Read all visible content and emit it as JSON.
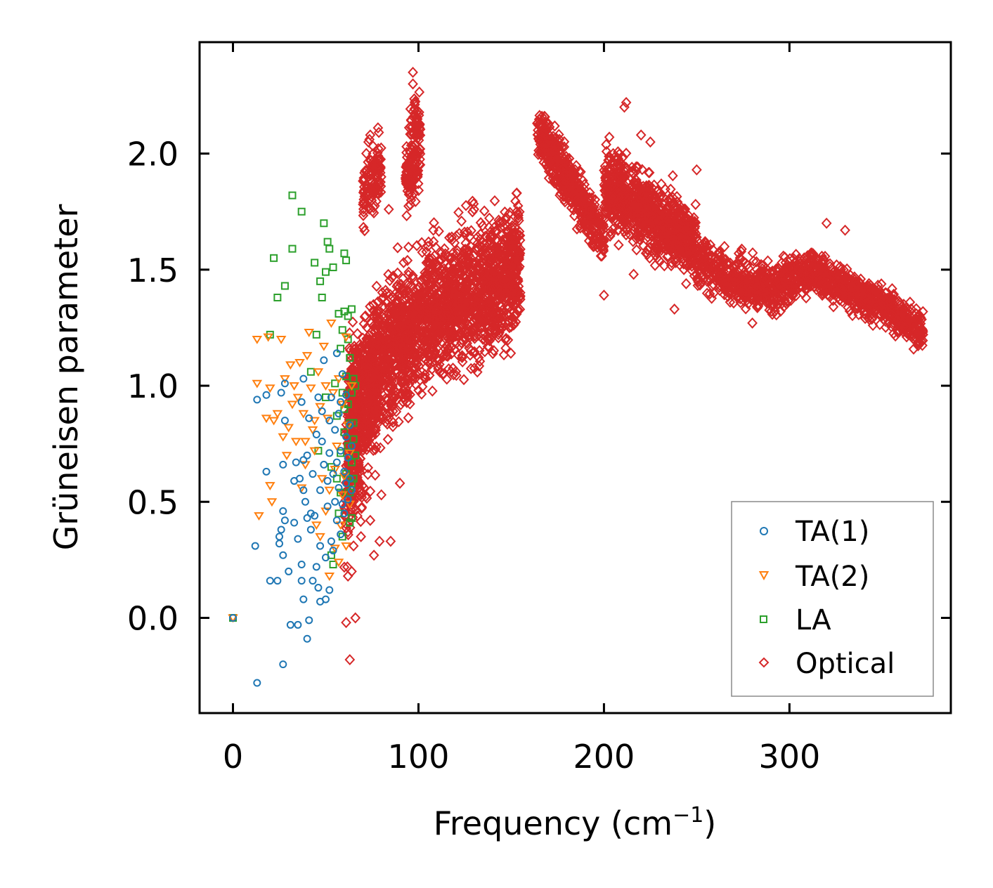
{
  "chart_data": {
    "type": "scatter",
    "title": "",
    "xlabel": "Frequency (cm",
    "xlabel_superscript": "−1",
    "xlabel_suffix": ")",
    "ylabel": "Grüneisen parameter",
    "xlim": [
      -18,
      387
    ],
    "ylim": [
      -0.41,
      2.48
    ],
    "xticks": [
      0,
      100,
      200,
      300
    ],
    "xtick_labels": [
      "0",
      "100",
      "200",
      "300"
    ],
    "yticks": [
      0.0,
      0.5,
      1.0,
      1.5,
      2.0
    ],
    "ytick_labels": [
      "0.0",
      "0.5",
      "1.0",
      "1.5",
      "2.0"
    ],
    "grid": false,
    "legend_position": "bottom-right",
    "series": [
      {
        "name": "TA(1)",
        "label": "TA(1)",
        "color": "#1f77b4",
        "marker": "circle",
        "points": [
          [
            0,
            0
          ],
          [
            13,
            0.94
          ],
          [
            13,
            -0.28
          ],
          [
            12,
            0.31
          ],
          [
            18,
            0.63
          ],
          [
            18,
            0.96
          ],
          [
            20,
            0.16
          ],
          [
            24,
            0.16
          ],
          [
            25,
            0.32
          ],
          [
            25,
            0.35
          ],
          [
            26,
            0.38
          ],
          [
            26,
            0.97
          ],
          [
            27,
            0.46
          ],
          [
            27,
            0.27
          ],
          [
            28,
            0.42
          ],
          [
            27,
            0.66
          ],
          [
            28,
            0.85
          ],
          [
            28,
            1.01
          ],
          [
            27,
            -0.2
          ],
          [
            31,
            -0.03
          ],
          [
            33,
            0.59
          ],
          [
            34,
            0.67
          ],
          [
            35,
            -0.03
          ],
          [
            35,
            0.34
          ],
          [
            36,
            0.6
          ],
          [
            37,
            0.16
          ],
          [
            38,
            0.08
          ],
          [
            37,
            0.23
          ],
          [
            38,
            0.68
          ],
          [
            37,
            0.93
          ],
          [
            38,
            1.03
          ],
          [
            39,
            0.5
          ],
          [
            40,
            0.43
          ],
          [
            40,
            0.7
          ],
          [
            41,
            0.86
          ],
          [
            40,
            -0.09
          ],
          [
            41,
            -0.01
          ],
          [
            42,
            0.45
          ],
          [
            43,
            0.16
          ],
          [
            43,
            0.62
          ],
          [
            44,
            0.44
          ],
          [
            45,
            0.79
          ],
          [
            46,
            0.95
          ],
          [
            46,
            0.13
          ],
          [
            47,
            0.31
          ],
          [
            47,
            0.55
          ],
          [
            47,
            0.07
          ],
          [
            48,
            0.76
          ],
          [
            48,
            0.89
          ],
          [
            49,
            1.11
          ],
          [
            50,
            0.08
          ],
          [
            50,
            0.26
          ],
          [
            51,
            0.48
          ],
          [
            51,
            0.59
          ],
          [
            52,
            0.12
          ],
          [
            52,
            0.71
          ],
          [
            53,
            0.95
          ],
          [
            53,
            0.33
          ],
          [
            54,
            0.62
          ],
          [
            54,
            0.29
          ],
          [
            55,
            0.5
          ],
          [
            55,
            0.81
          ],
          [
            56,
            0.42
          ],
          [
            56,
            0.67
          ],
          [
            57,
            0.56
          ],
          [
            57,
            0.88
          ],
          [
            58,
            0.36
          ],
          [
            58,
            0.72
          ],
          [
            59,
            0.49
          ],
          [
            59,
            1.05
          ],
          [
            60,
            0.63
          ],
          [
            60,
            0.45
          ],
          [
            61,
            0.78
          ],
          [
            61,
            0.58
          ],
          [
            62,
            0.51
          ],
          [
            62,
            0.69
          ],
          [
            63,
            0.6
          ],
          [
            63,
            0.83
          ],
          [
            64,
            0.55
          ],
          [
            64,
            0.74
          ],
          [
            45,
            0.22
          ],
          [
            38,
            0.55
          ],
          [
            52,
            0.85
          ],
          [
            58,
            0.93
          ],
          [
            42,
            0.38
          ],
          [
            49,
            0.66
          ],
          [
            56,
            1.14
          ],
          [
            33,
            0.41
          ],
          [
            61,
            0.96
          ],
          [
            30,
            0.2
          ]
        ]
      },
      {
        "name": "TA(2)",
        "label": "TA(2)",
        "color": "#ff7f0e",
        "marker": "triangle-down",
        "points": [
          [
            0,
            0
          ],
          [
            13,
            1.2
          ],
          [
            13,
            1.01
          ],
          [
            14,
            0.44
          ],
          [
            18,
            0.86
          ],
          [
            19,
            1.21
          ],
          [
            20,
            0.99
          ],
          [
            20,
            0.57
          ],
          [
            21,
            0.5
          ],
          [
            22,
            0.85
          ],
          [
            24,
            0.88
          ],
          [
            26,
            1.2
          ],
          [
            27,
            0.78
          ],
          [
            28,
            1.03
          ],
          [
            29,
            0.7
          ],
          [
            30,
            0.82
          ],
          [
            31,
            1.09
          ],
          [
            32,
            0.92
          ],
          [
            33,
            1.0
          ],
          [
            34,
            0.76
          ],
          [
            35,
            0.95
          ],
          [
            36,
            1.1
          ],
          [
            37,
            0.56
          ],
          [
            38,
            0.88
          ],
          [
            39,
            0.66
          ],
          [
            40,
            1.13
          ],
          [
            41,
            1.23
          ],
          [
            42,
            0.99
          ],
          [
            43,
            0.81
          ],
          [
            44,
            0.72
          ],
          [
            45,
            0.4
          ],
          [
            46,
            1.06
          ],
          [
            47,
            0.91
          ],
          [
            48,
            0.6
          ],
          [
            49,
            1.17
          ],
          [
            50,
            0.46
          ],
          [
            51,
            0.86
          ],
          [
            52,
            0.55
          ],
          [
            53,
            1.27
          ],
          [
            54,
            0.97
          ],
          [
            55,
            0.3
          ],
          [
            56,
            0.74
          ],
          [
            57,
            1.03
          ],
          [
            58,
            0.4
          ],
          [
            59,
            0.92
          ],
          [
            60,
            0.61
          ],
          [
            61,
            1.21
          ],
          [
            62,
            0.83
          ],
          [
            63,
            0.49
          ],
          [
            64,
            1.0
          ],
          [
            57,
            0.24
          ],
          [
            52,
            0.18
          ],
          [
            47,
            0.35
          ],
          [
            61,
            0.31
          ],
          [
            55,
            0.64
          ],
          [
            50,
            1.0
          ],
          [
            44,
            0.85
          ],
          [
            39,
            0.76
          ],
          [
            63,
            0.71
          ],
          [
            59,
            0.53
          ]
        ]
      },
      {
        "name": "LA",
        "label": "LA",
        "color": "#2ca02c",
        "marker": "square",
        "points": [
          [
            0,
            0
          ],
          [
            20,
            1.22
          ],
          [
            22,
            1.55
          ],
          [
            24,
            1.38
          ],
          [
            28,
            1.43
          ],
          [
            32,
            1.82
          ],
          [
            32,
            1.59
          ],
          [
            37,
            1.75
          ],
          [
            42,
            1.06
          ],
          [
            44,
            1.53
          ],
          [
            45,
            1.22
          ],
          [
            47,
            1.45
          ],
          [
            48,
            1.38
          ],
          [
            49,
            1.7
          ],
          [
            50,
            1.49
          ],
          [
            51,
            1.62
          ],
          [
            52,
            1.59
          ],
          [
            53,
            0.65
          ],
          [
            54,
            1.51
          ],
          [
            54,
            0.23
          ],
          [
            55,
            1.01
          ],
          [
            56,
            0.87
          ],
          [
            57,
            1.31
          ],
          [
            57,
            0.45
          ],
          [
            58,
            0.71
          ],
          [
            58,
            1.16
          ],
          [
            59,
            0.97
          ],
          [
            59,
            0.35
          ],
          [
            60,
            0.8
          ],
          [
            60,
            1.32
          ],
          [
            60,
            1.57
          ],
          [
            61,
            0.62
          ],
          [
            61,
            1.04
          ],
          [
            61,
            1.54
          ],
          [
            62,
            0.92
          ],
          [
            62,
            0.74
          ],
          [
            62,
            1.3
          ],
          [
            63,
            0.54
          ],
          [
            63,
            0.84
          ],
          [
            63,
            1.12
          ],
          [
            64,
            0.67
          ],
          [
            64,
            0.97
          ],
          [
            64,
            1.33
          ],
          [
            65,
            0.77
          ],
          [
            65,
            0.6
          ],
          [
            65,
            1.03
          ],
          [
            65,
            0.84
          ],
          [
            66,
            0.7
          ],
          [
            66,
            1.0
          ],
          [
            64,
            0.43
          ],
          [
            58,
            0.54
          ],
          [
            56,
            0.6
          ],
          [
            53,
            0.27
          ],
          [
            60,
            0.9
          ],
          [
            62,
            1.2
          ],
          [
            50,
            0.95
          ],
          [
            46,
            0.72
          ],
          [
            63,
            0.41
          ],
          [
            59,
            1.24
          ],
          [
            64,
            0.58
          ]
        ]
      },
      {
        "name": "Optical",
        "label": "Optical",
        "color": "#d62728",
        "marker": "diamond",
        "clusters": [
          {
            "fmin": 62,
            "fmax": 155,
            "center": [
              [
                62,
                0.9
              ],
              [
                75,
                1.05
              ],
              [
                90,
                1.2
              ],
              [
                110,
                1.32
              ],
              [
                130,
                1.4
              ],
              [
                155,
                1.52
              ]
            ],
            "spread": 0.3,
            "n": 2200
          },
          {
            "fmin": 60,
            "fmax": 78,
            "center": [
              [
                60,
                0.55
              ],
              [
                70,
                0.8
              ],
              [
                78,
                1.0
              ]
            ],
            "spread": 0.35,
            "n": 300
          },
          {
            "fmin": 70,
            "fmax": 80,
            "center": [
              [
                70,
                1.8
              ],
              [
                80,
                1.95
              ]
            ],
            "spread": 0.15,
            "n": 120
          },
          {
            "fmin": 93,
            "fmax": 101,
            "center": [
              [
                93,
                1.9
              ],
              [
                101,
                2.1
              ]
            ],
            "spread": 0.22,
            "n": 150
          },
          {
            "fmin": 164,
            "fmax": 200,
            "center": [
              [
                164,
                2.1
              ],
              [
                180,
                1.9
              ],
              [
                200,
                1.62
              ]
            ],
            "spread": 0.12,
            "n": 500
          },
          {
            "fmin": 200,
            "fmax": 250,
            "center": [
              [
                200,
                1.85
              ],
              [
                215,
                1.8
              ],
              [
                230,
                1.7
              ],
              [
                250,
                1.6
              ]
            ],
            "spread": 0.17,
            "n": 900
          },
          {
            "fmin": 250,
            "fmax": 310,
            "center": [
              [
                250,
                1.55
              ],
              [
                270,
                1.45
              ],
              [
                290,
                1.42
              ],
              [
                310,
                1.48
              ]
            ],
            "spread": 0.11,
            "n": 600
          },
          {
            "fmin": 310,
            "fmax": 372,
            "center": [
              [
                310,
                1.5
              ],
              [
                330,
                1.42
              ],
              [
                350,
                1.35
              ],
              [
                372,
                1.23
              ]
            ],
            "spread": 0.09,
            "n": 600
          }
        ],
        "sample_points": [
          [
            97,
            2.35
          ],
          [
            97,
            2.3
          ],
          [
            98,
            2.22
          ],
          [
            97,
            2.18
          ],
          [
            212,
            2.22
          ],
          [
            211,
            2.2
          ],
          [
            74,
            2.08
          ],
          [
            73,
            2.05
          ],
          [
            164,
            2.13
          ],
          [
            220,
            2.08
          ],
          [
            225,
            2.05
          ],
          [
            250,
            1.93
          ],
          [
            84,
            1.76
          ],
          [
            130,
            1.76
          ],
          [
            90,
            0.58
          ],
          [
            80,
            0.53
          ],
          [
            74,
            0.42
          ],
          [
            65,
            0.31
          ],
          [
            62,
            0.18
          ],
          [
            64,
            0.2
          ],
          [
            61,
            -0.02
          ],
          [
            66,
            0.0
          ],
          [
            63,
            -0.18
          ],
          [
            79,
            0.33
          ],
          [
            85,
            0.33
          ],
          [
            76,
            0.27
          ],
          [
            69,
            0.35
          ],
          [
            238,
            1.33
          ],
          [
            200,
            1.39
          ],
          [
            216,
            1.48
          ],
          [
            280,
            1.27
          ],
          [
            305,
            1.5
          ],
          [
            320,
            1.7
          ],
          [
            330,
            1.67
          ],
          [
            345,
            1.26
          ],
          [
            360,
            1.3
          ],
          [
            365,
            1.36
          ],
          [
            372,
            1.22
          ],
          [
            260,
            1.5
          ],
          [
            290,
            1.37
          ],
          [
            175,
            1.98
          ],
          [
            185,
            1.88
          ],
          [
            195,
            1.78
          ],
          [
            205,
            2.0
          ],
          [
            230,
            1.83
          ],
          [
            245,
            1.71
          ],
          [
            135,
            1.45
          ],
          [
            150,
            1.48
          ],
          [
            118,
            1.55
          ],
          [
            108,
            1.67
          ]
        ]
      }
    ]
  }
}
